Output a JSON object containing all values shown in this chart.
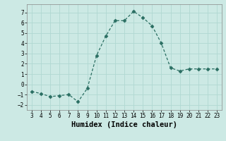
{
  "x": [
    3,
    4,
    5,
    6,
    7,
    8,
    9,
    10,
    11,
    12,
    13,
    14,
    15,
    16,
    17,
    18,
    19,
    20,
    21,
    22,
    23
  ],
  "y": [
    -0.7,
    -0.9,
    -1.2,
    -1.1,
    -1.0,
    -1.7,
    -0.4,
    2.8,
    4.7,
    6.2,
    6.2,
    7.1,
    6.5,
    5.7,
    4.0,
    1.6,
    1.3,
    1.5,
    1.5,
    1.5,
    1.5
  ],
  "line_color": "#2a6e62",
  "marker": "D",
  "marker_size": 2.5,
  "bg_color": "#cce9e4",
  "grid_color": "#b0d8d2",
  "xlabel": "Humidex (Indice chaleur)",
  "ylim": [
    -2.5,
    7.8
  ],
  "xlim": [
    2.5,
    23.5
  ],
  "yticks": [
    -2,
    -1,
    0,
    1,
    2,
    3,
    4,
    5,
    6,
    7
  ],
  "xticks": [
    3,
    4,
    5,
    6,
    7,
    8,
    9,
    10,
    11,
    12,
    13,
    14,
    15,
    16,
    17,
    18,
    19,
    20,
    21,
    22,
    23
  ],
  "tick_fontsize": 5.5,
  "xlabel_fontsize": 7.5
}
